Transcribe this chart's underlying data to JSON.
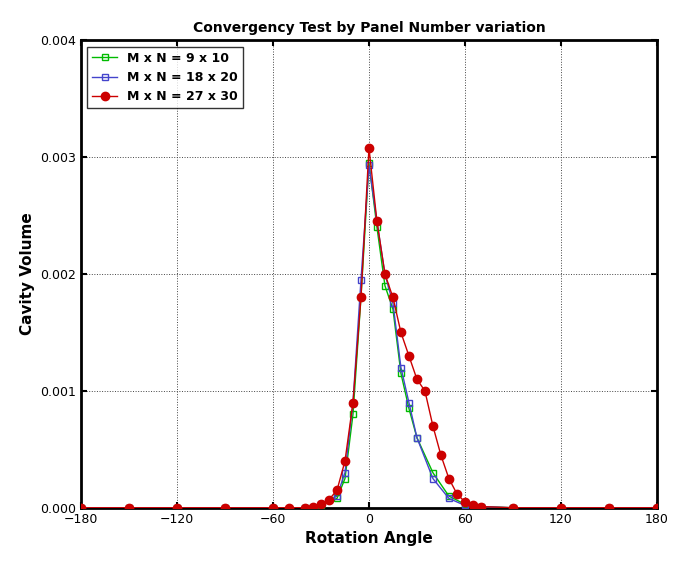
{
  "title": "Convergency Test by Panel Number variation",
  "xlabel": "Rotation Angle",
  "ylabel": "Cavity Volume",
  "xlim": [
    -180,
    180
  ],
  "ylim": [
    0,
    0.004
  ],
  "xticks": [
    -180,
    -120,
    -60,
    0,
    60,
    120,
    180
  ],
  "yticks": [
    0,
    0.001,
    0.002,
    0.003,
    0.004
  ],
  "series": [
    {
      "label": "M x N = 9 x 10",
      "color": "#00bb00",
      "marker": "s",
      "markersize": 5,
      "markerfacecolor": "none",
      "markeredgecolor": "#00bb00",
      "linewidth": 1.0,
      "x": [
        -180,
        -150,
        -120,
        -90,
        -60,
        -40,
        -30,
        -20,
        -15,
        -10,
        -5,
        0,
        5,
        10,
        15,
        20,
        25,
        30,
        40,
        50,
        60,
        70,
        90,
        120,
        150,
        180
      ],
      "y": [
        0,
        0,
        0,
        0,
        0,
        0,
        2e-05,
        8e-05,
        0.00025,
        0.0008,
        0.0018,
        0.00295,
        0.0024,
        0.0019,
        0.0017,
        0.00115,
        0.00085,
        0.0006,
        0.0003,
        0.0001,
        3e-05,
        1e-05,
        0,
        0,
        0,
        0
      ]
    },
    {
      "label": "M x N = 18 x 20",
      "color": "#4444cc",
      "marker": "s",
      "markersize": 5,
      "markerfacecolor": "none",
      "markeredgecolor": "#4444cc",
      "linewidth": 1.0,
      "x": [
        -180,
        -150,
        -120,
        -90,
        -60,
        -40,
        -30,
        -20,
        -15,
        -10,
        -5,
        0,
        5,
        10,
        15,
        20,
        25,
        30,
        40,
        50,
        60,
        70,
        90,
        120,
        150,
        180
      ],
      "y": [
        0,
        0,
        0,
        0,
        0,
        0,
        3e-05,
        0.0001,
        0.0003,
        0.0009,
        0.00195,
        0.00293,
        0.00245,
        0.002,
        0.00175,
        0.0012,
        0.0009,
        0.0006,
        0.00025,
        8e-05,
        2e-05,
        1e-05,
        0,
        0,
        0,
        0
      ]
    },
    {
      "label": "M x N = 27 x 30",
      "color": "#cc0000",
      "marker": "o",
      "markersize": 6,
      "markerfacecolor": "#cc0000",
      "markeredgecolor": "#cc0000",
      "linewidth": 1.0,
      "x": [
        -180,
        -150,
        -120,
        -90,
        -60,
        -50,
        -40,
        -35,
        -30,
        -25,
        -20,
        -15,
        -10,
        -5,
        0,
        5,
        10,
        15,
        20,
        25,
        30,
        35,
        40,
        45,
        50,
        55,
        60,
        65,
        70,
        90,
        120,
        150,
        180
      ],
      "y": [
        0,
        0,
        0,
        0,
        0,
        0,
        0,
        1e-05,
        3e-05,
        7e-05,
        0.00015,
        0.0004,
        0.0009,
        0.0018,
        0.00308,
        0.00245,
        0.002,
        0.0018,
        0.0015,
        0.0013,
        0.0011,
        0.001,
        0.0007,
        0.00045,
        0.00025,
        0.00012,
        5e-05,
        2e-05,
        1e-05,
        0,
        0,
        0,
        0
      ]
    }
  ],
  "background_color": "#ffffff",
  "title_fontsize": 10,
  "label_fontsize": 11,
  "tick_fontsize": 9,
  "legend_fontsize": 9,
  "figwidth": 6.77,
  "figheight": 5.77,
  "dpi": 100
}
